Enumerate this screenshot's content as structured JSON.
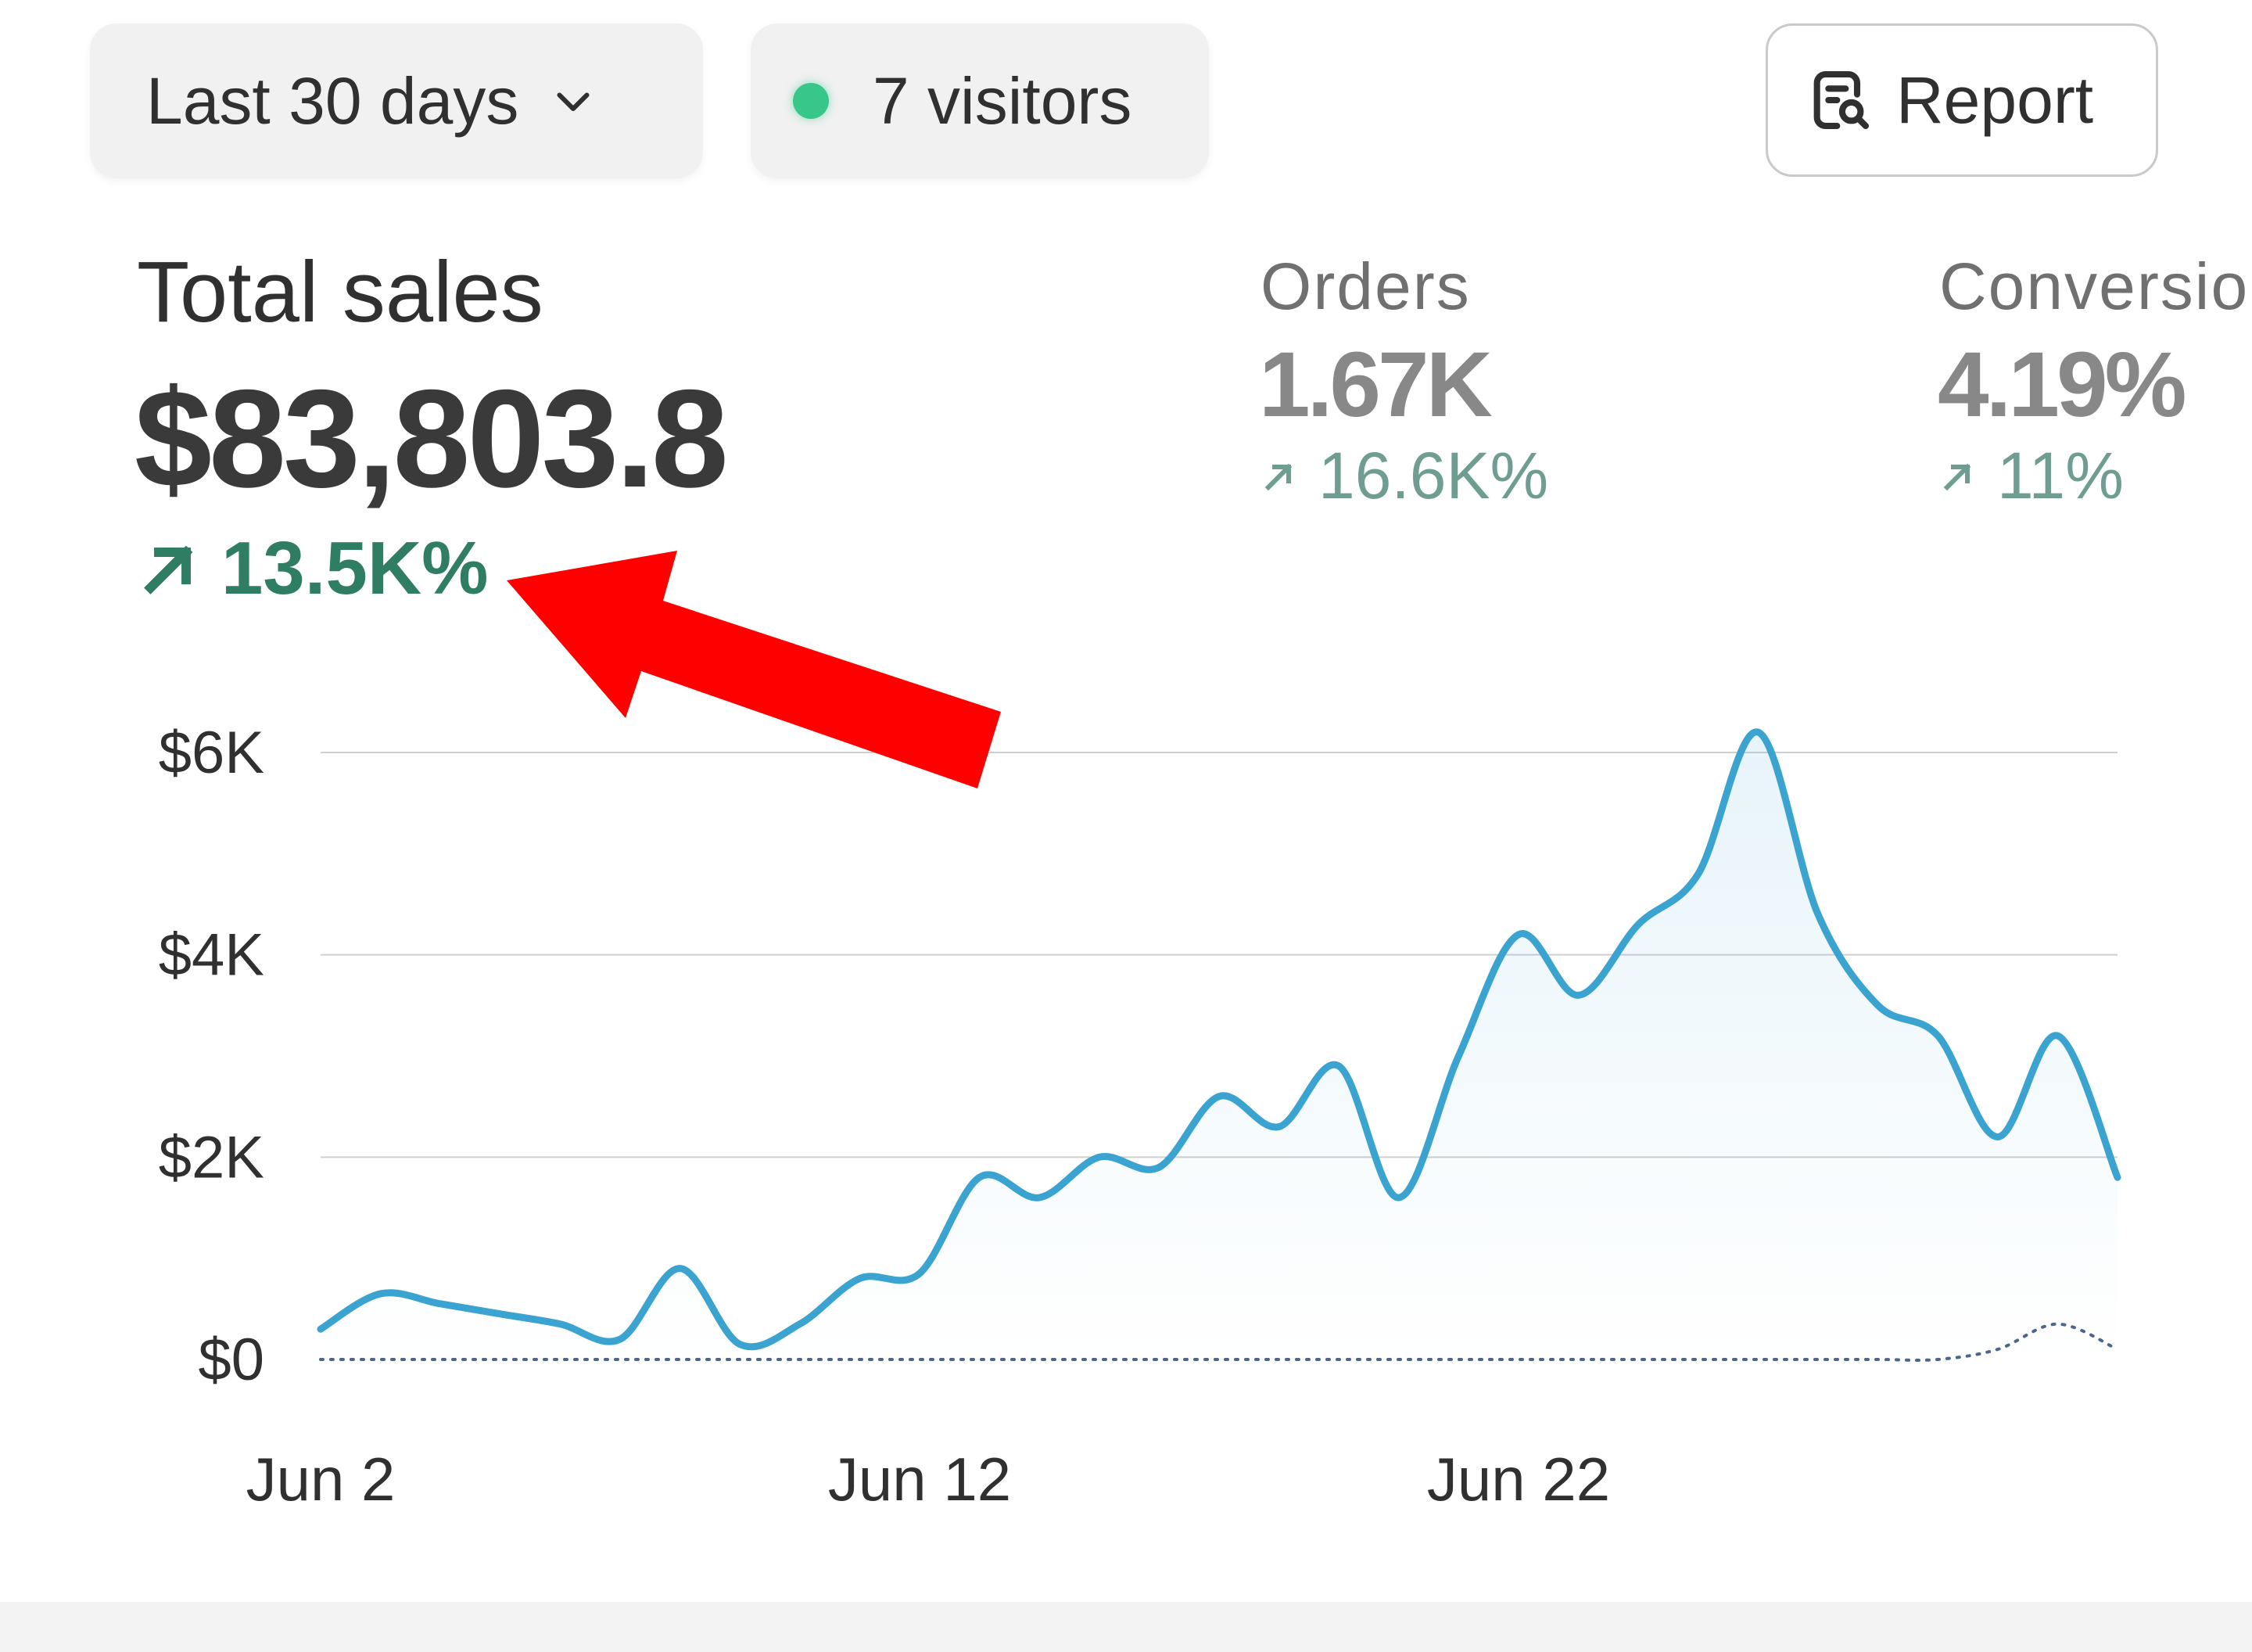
{
  "toolbar": {
    "date_range_label": "Last 30 days",
    "visitors_label": "7 visitors",
    "report_label": "Report"
  },
  "icons": {
    "date_range_dropdown": "chevron-down-icon",
    "visitors_live": "live-dot-icon",
    "report": "report-search-icon",
    "trend_up": "arrow-up-right-icon"
  },
  "metrics": {
    "total_sales": {
      "title": "Total sales",
      "value": "$83,803.8",
      "delta": "13.5K%"
    },
    "orders": {
      "title": "Orders",
      "value": "1.67K",
      "delta": "16.6K%"
    },
    "conversion": {
      "title": "Conversio",
      "value": "4.19%",
      "delta": "11%"
    }
  },
  "colors": {
    "accent_line": "#3aa3cf",
    "delta_green": "#2f7d62",
    "delta_muted": "#6f9d92",
    "live_dot": "#38c78a",
    "annotation_arrow": "#ff0000",
    "comparison_dots": "#2d4a7a"
  },
  "chart_data": {
    "type": "line",
    "y_ticks": [
      "$0",
      "$2K",
      "$4K",
      "$6K"
    ],
    "x_ticks": [
      "Jun 2",
      "Jun 12",
      "Jun 22"
    ],
    "ylim": [
      0,
      6000
    ],
    "grid": true,
    "series": [
      {
        "color": "#3aa3cf",
        "style": "solid",
        "points": [
          [
            0,
            300
          ],
          [
            1,
            650
          ],
          [
            2,
            550
          ],
          [
            3,
            450
          ],
          [
            4,
            350
          ],
          [
            5,
            200
          ],
          [
            6,
            900
          ],
          [
            7,
            150
          ],
          [
            8,
            350
          ],
          [
            9,
            800
          ],
          [
            10,
            850
          ],
          [
            11,
            1800
          ],
          [
            12,
            1600
          ],
          [
            13,
            2000
          ],
          [
            14,
            1900
          ],
          [
            15,
            2600
          ],
          [
            16,
            2300
          ],
          [
            17,
            2900
          ],
          [
            18,
            1600
          ],
          [
            19,
            3000
          ],
          [
            20,
            4200
          ],
          [
            21,
            3600
          ],
          [
            22,
            4300
          ],
          [
            23,
            4800
          ],
          [
            24,
            6200
          ],
          [
            25,
            4400
          ],
          [
            26,
            3500
          ],
          [
            27,
            3200
          ],
          [
            28,
            2200
          ],
          [
            29,
            3200
          ],
          [
            30,
            1800
          ]
        ]
      },
      {
        "color": "#2d4a7a",
        "style": "dotted",
        "points": [
          [
            0,
            0
          ],
          [
            1,
            0
          ],
          [
            2,
            0
          ],
          [
            3,
            0
          ],
          [
            4,
            0
          ],
          [
            5,
            0
          ],
          [
            6,
            0
          ],
          [
            7,
            0
          ],
          [
            8,
            0
          ],
          [
            9,
            0
          ],
          [
            10,
            0
          ],
          [
            11,
            0
          ],
          [
            12,
            0
          ],
          [
            13,
            0
          ],
          [
            14,
            0
          ],
          [
            15,
            0
          ],
          [
            16,
            0
          ],
          [
            17,
            0
          ],
          [
            18,
            0
          ],
          [
            19,
            0
          ],
          [
            20,
            0
          ],
          [
            21,
            0
          ],
          [
            22,
            0
          ],
          [
            23,
            0
          ],
          [
            24,
            0
          ],
          [
            25,
            0
          ],
          [
            26,
            0
          ],
          [
            27,
            0
          ],
          [
            28,
            100
          ],
          [
            29,
            350
          ],
          [
            30,
            100
          ]
        ]
      }
    ]
  }
}
